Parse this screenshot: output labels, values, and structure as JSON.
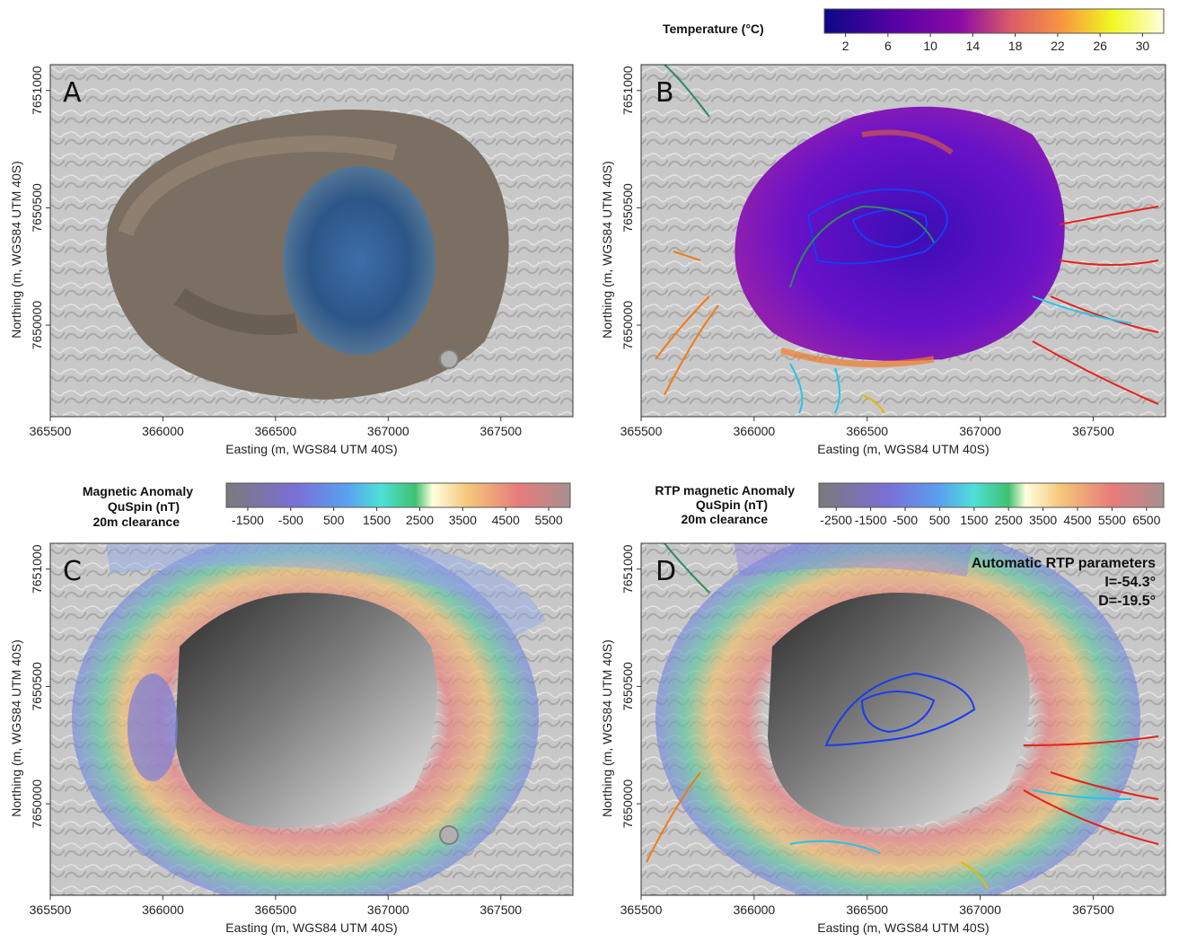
{
  "axes": {
    "x_label": "Easting (m, WGS84 UTM 40S)",
    "y_label": "Northing (m, WGS84 UTM 40S)",
    "x_ticks": [
      "365500",
      "366000",
      "366500",
      "367000",
      "367500"
    ],
    "y_ticks": [
      "7651000",
      "7650500",
      "7650000"
    ]
  },
  "panels": {
    "a": {
      "letter": "A"
    },
    "b": {
      "letter": "B",
      "colorbar_title": "Temperature (°C)",
      "colorbar_ticks": [
        "2",
        "6",
        "10",
        "14",
        "18",
        "22",
        "26",
        "30"
      ],
      "colors": [
        "#0d0887",
        "#6a00a8",
        "#b12a90",
        "#e16462",
        "#fca636",
        "#f0f921",
        "#fffce0"
      ]
    },
    "c": {
      "letter": "C",
      "colorbar_title_1": "Magnetic Anomaly",
      "colorbar_title_2": "QuSpin (nT)",
      "colorbar_title_3": "20m clearance",
      "colorbar_ticks": [
        "-1500",
        "-500",
        "500",
        "1500",
        "2500",
        "3500",
        "4500",
        "5500"
      ]
    },
    "d": {
      "letter": "D",
      "colorbar_title_1": "RTP magnetic Anomaly",
      "colorbar_title_2": "QuSpin (nT)",
      "colorbar_title_3": "20m clearance",
      "colorbar_ticks": [
        "-2500",
        "-1500",
        "-500",
        "500",
        "1500",
        "2500",
        "3500",
        "4500",
        "5500",
        "6500"
      ],
      "rtp_title": "Automatic RTP parameters",
      "rtp_inclination": "I=-54.3°",
      "rtp_declination": "D=-19.5°"
    }
  },
  "legend_colors": {
    "red_flows": "#e8201a",
    "orange_flows": "#f27a12",
    "cyan_flows": "#24c5e8",
    "blue_contours": "#1a3cf0",
    "green_contours": "#2f8a5a",
    "yellow_flows": "#e6b800"
  }
}
